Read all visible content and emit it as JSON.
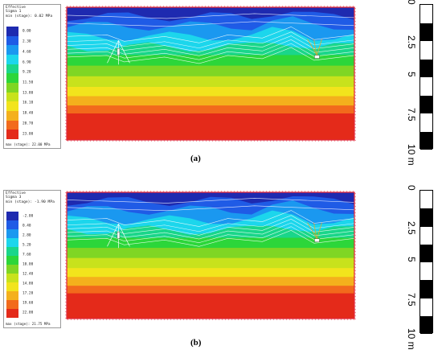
{
  "panels": [
    {
      "id": "a",
      "caption": "(a)",
      "legend": {
        "line1": "Effective",
        "line2": "Sigma 1",
        "line3": "min (stage): 0.02 MPa",
        "values": [
          "0.00",
          "2.30",
          "4.60",
          "6.90",
          "9.20",
          "11.50",
          "13.80",
          "16.10",
          "18.40",
          "20.70",
          "23.00"
        ],
        "footer": "max (stage): 22.00 MPa"
      }
    },
    {
      "id": "b",
      "caption": "(b)",
      "legend": {
        "line1": "Effective",
        "line2": "Sigma 3",
        "line3": "min (stage): -1.90 MPa",
        "values": [
          "-2.00",
          "0.40",
          "2.80",
          "5.20",
          "7.60",
          "10.00",
          "12.40",
          "14.80",
          "17.20",
          "19.60",
          "22.00"
        ],
        "footer": "max (stage): 21.75 MPa"
      }
    }
  ],
  "scale_bar": {
    "ticks": [
      "0",
      "2.5",
      "5",
      "7.5",
      "10 m"
    ]
  },
  "colors": {
    "contour_ramp": [
      "#1e2ab0",
      "#1f5be6",
      "#1a98f0",
      "#1cd6ec",
      "#1ad68a",
      "#2cd63a",
      "#7fd624",
      "#c8e21c",
      "#f2e41c",
      "#f4b01c",
      "#f26a1c",
      "#e42a1a"
    ],
    "mesh_border": "#e0283a"
  }
}
